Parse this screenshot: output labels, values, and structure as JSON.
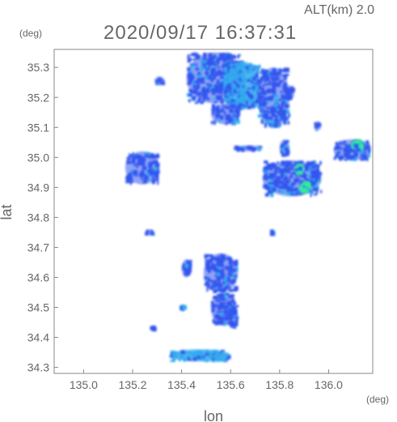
{
  "chart_data": {
    "type": "heatmap",
    "title": "2020/09/17 16:37:31",
    "subtitle": "ALT(km) 2.0",
    "xlabel": "lon",
    "ylabel": "lat",
    "x_unit": "(deg)",
    "y_unit": "(deg)",
    "xlim": [
      134.88,
      136.18
    ],
    "ylim": [
      34.28,
      35.36
    ],
    "x_ticks": [
      "135.0",
      "135.2",
      "135.4",
      "135.6",
      "135.8",
      "136.0"
    ],
    "y_ticks": [
      "34.3",
      "34.4",
      "34.5",
      "34.6",
      "34.7",
      "34.8",
      "34.9",
      "35.0",
      "35.1",
      "35.2",
      "35.3"
    ],
    "grid": false,
    "colors": {
      "low": "#3355ee",
      "mid": "#33aaee",
      "high": "#33ee99",
      "axis": "#888888",
      "text": "#666666"
    },
    "echo_regions": [
      {
        "lon": [
          135.42,
          135.65
        ],
        "lat": [
          35.18,
          35.35
        ],
        "level": "low"
      },
      {
        "lon": [
          135.57,
          135.72
        ],
        "lat": [
          35.16,
          35.32
        ],
        "level": "mid"
      },
      {
        "lon": [
          135.71,
          135.84
        ],
        "lat": [
          35.1,
          35.3
        ],
        "level": "low"
      },
      {
        "lon": [
          135.82,
          135.86
        ],
        "lat": [
          35.19,
          35.24
        ],
        "level": "low"
      },
      {
        "lon": [
          135.29,
          135.33
        ],
        "lat": [
          35.24,
          35.27
        ],
        "level": "low"
      },
      {
        "lon": [
          135.52,
          135.64
        ],
        "lat": [
          35.11,
          35.18
        ],
        "level": "low"
      },
      {
        "lon": [
          135.73,
          135.97
        ],
        "lat": [
          34.87,
          34.99
        ],
        "level": "low"
      },
      {
        "lon": [
          135.86,
          135.9
        ],
        "lat": [
          34.94,
          34.98
        ],
        "level": "high"
      },
      {
        "lon": [
          135.88,
          135.93
        ],
        "lat": [
          34.88,
          34.92
        ],
        "level": "high"
      },
      {
        "lon": [
          136.02,
          136.17
        ],
        "lat": [
          34.99,
          35.06
        ],
        "level": "low"
      },
      {
        "lon": [
          136.09,
          136.15
        ],
        "lat": [
          35.02,
          35.06
        ],
        "level": "high"
      },
      {
        "lon": [
          135.61,
          135.73
        ],
        "lat": [
          35.02,
          35.04
        ],
        "level": "low"
      },
      {
        "lon": [
          135.17,
          135.31
        ],
        "lat": [
          34.91,
          35.02
        ],
        "level": "low"
      },
      {
        "lon": [
          135.94,
          135.97
        ],
        "lat": [
          35.09,
          35.12
        ],
        "level": "low"
      },
      {
        "lon": [
          135.8,
          135.84
        ],
        "lat": [
          35.0,
          35.06
        ],
        "level": "low"
      },
      {
        "lon": [
          135.76,
          135.78
        ],
        "lat": [
          34.74,
          34.76
        ],
        "level": "low"
      },
      {
        "lon": [
          135.25,
          135.29
        ],
        "lat": [
          34.74,
          34.76
        ],
        "level": "low"
      },
      {
        "lon": [
          135.49,
          135.63
        ],
        "lat": [
          34.55,
          34.68
        ],
        "level": "low"
      },
      {
        "lon": [
          135.52,
          135.62
        ],
        "lat": [
          34.44,
          34.55
        ],
        "level": "low"
      },
      {
        "lon": [
          135.4,
          135.44
        ],
        "lat": [
          34.6,
          34.66
        ],
        "level": "low"
      },
      {
        "lon": [
          135.39,
          135.42
        ],
        "lat": [
          34.49,
          34.51
        ],
        "level": "mid"
      },
      {
        "lon": [
          135.59,
          135.63
        ],
        "lat": [
          34.43,
          34.51
        ],
        "level": "low"
      },
      {
        "lon": [
          135.27,
          135.3
        ],
        "lat": [
          34.42,
          34.44
        ],
        "level": "low"
      },
      {
        "lon": [
          135.35,
          135.6
        ],
        "lat": [
          34.32,
          34.36
        ],
        "level": "mid"
      }
    ]
  }
}
